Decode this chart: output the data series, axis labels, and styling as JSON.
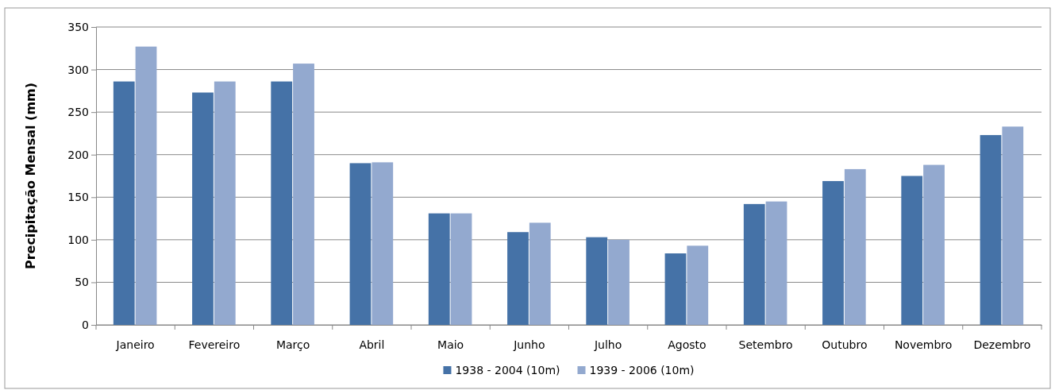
{
  "chart_data": {
    "type": "bar",
    "ylabel": "Precipitação Mensal (mm)",
    "categories": [
      "Janeiro",
      "Fevereiro",
      "Março",
      "Abril",
      "Maio",
      "Junho",
      "Julho",
      "Agosto",
      "Setembro",
      "Outubro",
      "Novembro",
      "Dezembro"
    ],
    "series": [
      {
        "name": "1938 - 2004 (10m)",
        "color": "#4572a7",
        "values": [
          286,
          273,
          286,
          190,
          131,
          109,
          103,
          84,
          142,
          169,
          175,
          223
        ]
      },
      {
        "name": "1939 - 2006 (10m)",
        "color": "#93a9cf",
        "values": [
          327,
          286,
          307,
          191,
          131,
          120,
          100,
          93,
          145,
          183,
          188,
          233
        ]
      }
    ],
    "ylim": [
      0,
      350
    ],
    "yticks": [
      0,
      50,
      100,
      150,
      200,
      250,
      300,
      350
    ],
    "grid": "y",
    "legend": "bottom"
  }
}
